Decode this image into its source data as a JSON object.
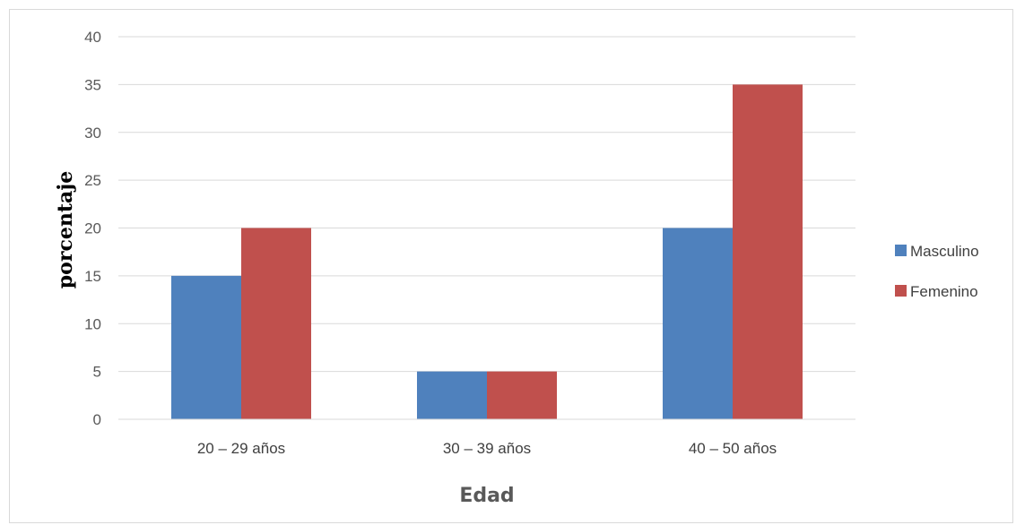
{
  "chart_data": {
    "type": "bar",
    "categories": [
      "20 – 29 años",
      "30 – 39 años",
      "40 – 50 años"
    ],
    "series": [
      {
        "name": "Masculino",
        "values": [
          15,
          5,
          20
        ],
        "color": "#4f81bd"
      },
      {
        "name": "Femenino",
        "values": [
          20,
          5,
          35
        ],
        "color": "#c0504d"
      }
    ],
    "title": "",
    "xlabel": "Edad",
    "ylabel": "porcentaje",
    "ylim": [
      0,
      40
    ],
    "yticks": [
      0,
      5,
      10,
      15,
      20,
      25,
      30,
      35,
      40
    ],
    "grid": true,
    "legend_position": "right",
    "colors": {
      "gridline": "#d9d9d9",
      "axis_text": "#595959"
    }
  }
}
